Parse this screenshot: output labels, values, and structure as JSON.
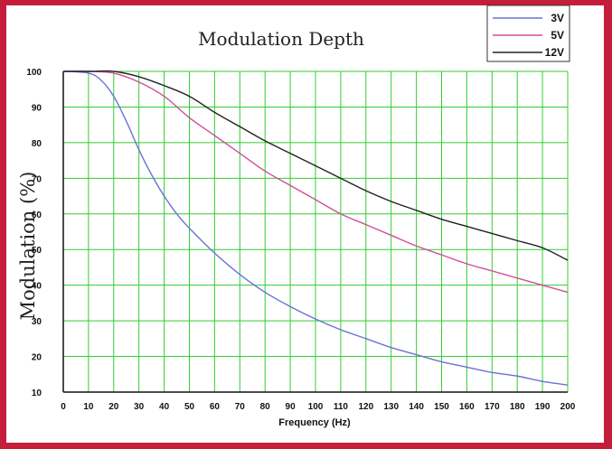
{
  "chart_data": {
    "type": "line",
    "title": "Modulation Depth",
    "xlabel": "Frequency (Hz)",
    "ylabel": "Modulation (%)",
    "xlim": [
      0,
      200
    ],
    "ylim": [
      10,
      100
    ],
    "x_ticks": [
      "0",
      "10",
      "20",
      "30",
      "40",
      "50",
      "60",
      "70",
      "80",
      "90",
      "100",
      "110",
      "120",
      "130",
      "140",
      "150",
      "160",
      "170",
      "180",
      "190",
      "200"
    ],
    "y_ticks": [
      "10",
      "20",
      "30",
      "40",
      "50",
      "60",
      "70",
      "80",
      "90",
      "100"
    ],
    "grid": true,
    "grid_color": "#33cc33",
    "legend_position": "top-right",
    "series": [
      {
        "name": "3V",
        "color": "#6a72d8",
        "x": [
          0,
          10,
          15,
          20,
          25,
          30,
          35,
          40,
          45,
          50,
          60,
          70,
          80,
          90,
          100,
          110,
          120,
          130,
          140,
          150,
          160,
          170,
          180,
          190,
          200
        ],
        "y": [
          100,
          99.5,
          97.5,
          93,
          86,
          78,
          71,
          65,
          60,
          56,
          49,
          43,
          38,
          34,
          30.5,
          27.5,
          25,
          22.5,
          20.5,
          18.5,
          17,
          15.5,
          14.5,
          13,
          12
        ]
      },
      {
        "name": "5V",
        "color": "#d04f9a",
        "x": [
          0,
          10,
          20,
          30,
          40,
          50,
          60,
          70,
          80,
          90,
          100,
          110,
          120,
          130,
          140,
          150,
          160,
          170,
          180,
          190,
          200
        ],
        "y": [
          100,
          100,
          99.5,
          97,
          93,
          87,
          82,
          77,
          72,
          68,
          64,
          60,
          57,
          54,
          51,
          48.5,
          46,
          44,
          42,
          40,
          38
        ]
      },
      {
        "name": "12V",
        "color": "#222222",
        "x": [
          0,
          10,
          20,
          30,
          40,
          50,
          60,
          70,
          80,
          90,
          100,
          110,
          120,
          130,
          140,
          150,
          160,
          170,
          180,
          190,
          200
        ],
        "y": [
          100,
          100,
          100,
          98.5,
          96,
          93,
          88.5,
          84.5,
          80.5,
          77,
          73.5,
          70,
          66.5,
          63.5,
          61,
          58.5,
          56.5,
          54.5,
          52.5,
          50.5,
          47
        ]
      }
    ]
  }
}
